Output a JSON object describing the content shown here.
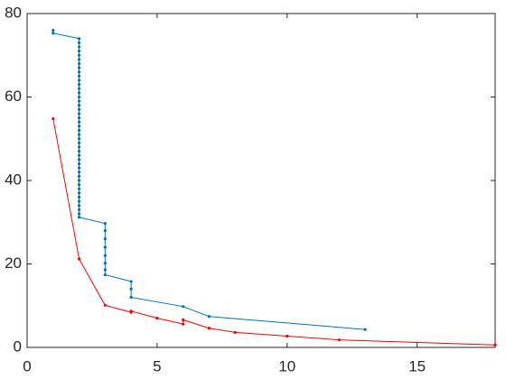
{
  "chart_data": {
    "type": "line",
    "xlim": [
      0,
      18
    ],
    "xticks": [
      0,
      5,
      10,
      15
    ],
    "ylim": [
      0,
      80
    ],
    "yticks": [
      0,
      20,
      40,
      60,
      80
    ],
    "series": [
      {
        "color": "#0072bd",
        "x": [
          1,
          1,
          2,
          2,
          2,
          2,
          2,
          2,
          2,
          2,
          2,
          2,
          2,
          2,
          2,
          2,
          2,
          2,
          2,
          2,
          2,
          2,
          2,
          2,
          2,
          2,
          2,
          2,
          2,
          2,
          2,
          2,
          2,
          2,
          2,
          2,
          2,
          2,
          2,
          2,
          2,
          2,
          2,
          2,
          2,
          2,
          3,
          3,
          3,
          3,
          3,
          3,
          3,
          3,
          4,
          4,
          4,
          6,
          7,
          13
        ],
        "values": [
          76,
          75.3,
          74,
          73,
          72,
          71,
          70,
          69,
          68,
          67,
          66,
          65,
          64,
          63,
          62,
          61,
          60,
          59,
          58,
          57,
          56,
          55,
          54,
          53,
          52,
          51,
          50,
          49,
          48,
          47,
          46,
          45,
          44,
          43,
          42,
          41,
          40,
          39,
          38,
          37,
          36,
          35,
          34,
          33,
          32,
          31.2,
          29.7,
          28,
          26,
          24,
          22,
          20.2,
          18.6,
          17.4,
          15.8,
          14,
          12,
          9.8,
          7.4,
          4.3
        ]
      },
      {
        "color": "#ff0000",
        "x": [
          1,
          2,
          3,
          4,
          4,
          5,
          6,
          6,
          7,
          8,
          10,
          12,
          18
        ],
        "values": [
          54.8,
          21.2,
          10.1,
          8.4,
          8.7,
          7.0,
          5.6,
          6.6,
          4.6,
          3.6,
          2.7,
          1.8,
          0.6
        ]
      }
    ]
  }
}
